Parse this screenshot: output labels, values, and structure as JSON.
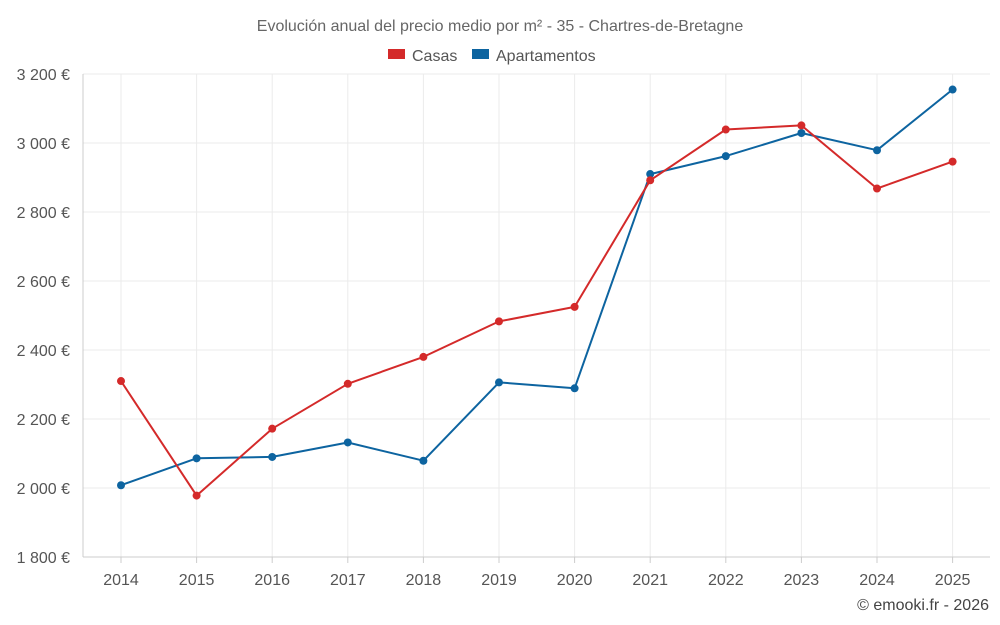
{
  "chart_data": {
    "type": "line",
    "title": "Evolución anual del precio medio por m² - 35 - Chartres-de-Bretagne",
    "categories": [
      "2014",
      "2015",
      "2016",
      "2017",
      "2018",
      "2019",
      "2020",
      "2021",
      "2022",
      "2023",
      "2024",
      "2025"
    ],
    "series": [
      {
        "name": "Casas",
        "color": "#d42a2a",
        "values": [
          2310,
          1978,
          2172,
          2302,
          2380,
          2483,
          2525,
          2892,
          3039,
          3051,
          2868,
          2946
        ]
      },
      {
        "name": "Apartamentos",
        "color": "#0d64a0",
        "values": [
          2008,
          2086,
          2090,
          2132,
          2079,
          2306,
          2289,
          2910,
          2962,
          3029,
          2979,
          3155
        ]
      }
    ],
    "ylim": [
      1800,
      3200
    ],
    "yticks": [
      1800,
      2000,
      2200,
      2400,
      2600,
      2800,
      3000,
      3200
    ],
    "ytick_labels": [
      "1 800 €",
      "2 000 €",
      "2 200 €",
      "2 400 €",
      "2 600 €",
      "2 800 €",
      "3 000 €",
      "3 200 €"
    ],
    "xlabel": "",
    "ylabel": "",
    "legend_position": "top-center",
    "grid": true
  },
  "credit": "© emooki.fr - 2026"
}
